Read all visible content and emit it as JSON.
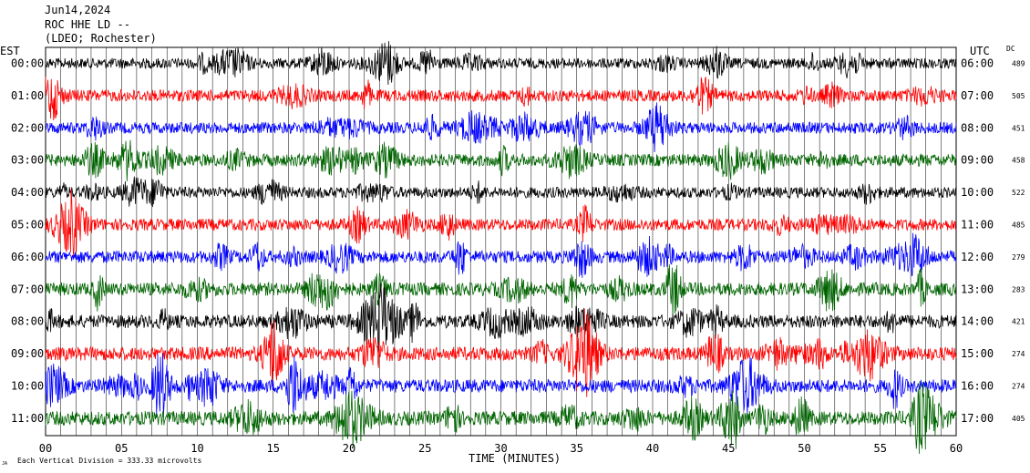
{
  "header": {
    "date": "Jun14,2024",
    "station": "ROC HHE LD --",
    "location": "(LDEO; Rochester)"
  },
  "left_tz_label": "EST",
  "right_tz_label": "UTC",
  "dc_label": "DC",
  "footer": {
    "scale_prefix": "JA",
    "scale_text": "Each Vertical Division =  333.33 microvolts",
    "x_axis_label": "TIME (MINUTES)"
  },
  "colors": {
    "trace_cycle": [
      "#000000",
      "#ff0000",
      "#0000ff",
      "#006400"
    ],
    "grid": "#000000",
    "background": "#ffffff"
  },
  "chart_data": {
    "type": "line",
    "subtype": "helicorder",
    "title": "",
    "xlabel": "TIME (MINUTES)",
    "ylabel": "",
    "xlim": [
      0,
      60
    ],
    "x_ticks": [
      "00",
      "05",
      "10",
      "15",
      "20",
      "25",
      "30",
      "35",
      "40",
      "45",
      "50",
      "55",
      "60"
    ],
    "rows": [
      {
        "est": "00:00",
        "utc": "06:00",
        "dc": "489",
        "color": "#000000",
        "activity": 0.55
      },
      {
        "est": "01:00",
        "utc": "07:00",
        "dc": "505",
        "color": "#ff0000",
        "activity": 0.7
      },
      {
        "est": "02:00",
        "utc": "08:00",
        "dc": "451",
        "color": "#0000ff",
        "activity": 0.65
      },
      {
        "est": "03:00",
        "utc": "09:00",
        "dc": "458",
        "color": "#006400",
        "activity": 0.75
      },
      {
        "est": "04:00",
        "utc": "10:00",
        "dc": "522",
        "color": "#000000",
        "activity": 0.6
      },
      {
        "est": "05:00",
        "utc": "11:00",
        "dc": "485",
        "color": "#ff0000",
        "activity": 0.7
      },
      {
        "est": "06:00",
        "utc": "12:00",
        "dc": "279",
        "color": "#0000ff",
        "activity": 0.75
      },
      {
        "est": "07:00",
        "utc": "13:00",
        "dc": "283",
        "color": "#006400",
        "activity": 0.85
      },
      {
        "est": "08:00",
        "utc": "14:00",
        "dc": "421",
        "color": "#000000",
        "activity": 0.85
      },
      {
        "est": "09:00",
        "utc": "15:00",
        "dc": "274",
        "color": "#ff0000",
        "activity": 0.9
      },
      {
        "est": "10:00",
        "utc": "16:00",
        "dc": "274",
        "color": "#0000ff",
        "activity": 0.85
      },
      {
        "est": "11:00",
        "utc": "17:00",
        "dc": "405",
        "color": "#006400",
        "activity": 0.95
      }
    ]
  }
}
